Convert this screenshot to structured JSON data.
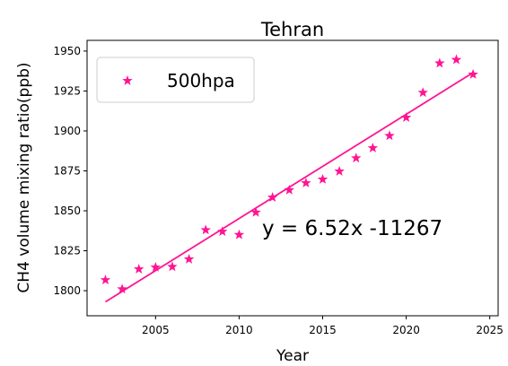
{
  "chart_data": {
    "type": "scatter",
    "title": "Tehran",
    "xlabel": "Year",
    "ylabel": "CH4 volume mixing ratio(ppb)",
    "x": [
      2002,
      2003,
      2004,
      2005,
      2006,
      2007,
      2008,
      2009,
      2010,
      2011,
      2012,
      2013,
      2014,
      2015,
      2016,
      2017,
      2018,
      2019,
      2020,
      2021,
      2022,
      2023,
      2024
    ],
    "series": [
      {
        "name": "500hpa",
        "color": "#ff1493",
        "marker": "star",
        "values": [
          1806.7,
          1801,
          1813.5,
          1814.6,
          1815,
          1819.7,
          1838,
          1837,
          1835,
          1849,
          1858.4,
          1863,
          1867.4,
          1869.7,
          1874.7,
          1883,
          1889.3,
          1897,
          1908.4,
          1924,
          1942.4,
          1944.6,
          1935.4
        ]
      }
    ],
    "fit": {
      "x": [
        2002,
        2024
      ],
      "values": [
        1793,
        1936.5
      ],
      "color": "#ff1493"
    },
    "annotation": "y = 6.52x -11267",
    "xlim": [
      2000.9,
      2025.5
    ],
    "ylim": [
      1784.3,
      1956.7
    ],
    "xticks": [
      2005,
      2010,
      2015,
      2020,
      2025
    ],
    "yticks": [
      1800,
      1825,
      1850,
      1875,
      1900,
      1925,
      1950
    ],
    "legend": "upper left",
    "grid": false
  }
}
